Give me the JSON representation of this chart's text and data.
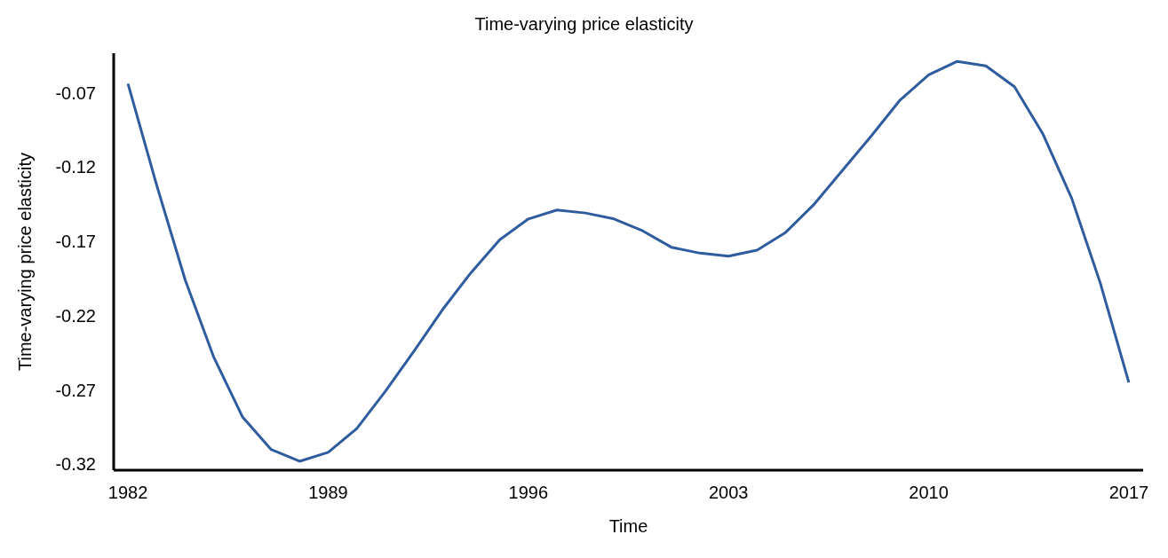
{
  "chart_data": {
    "type": "line",
    "title": "Time-varying price elasticity",
    "xlabel": "Time",
    "ylabel": "Time-varying price elasticity",
    "x": [
      1982,
      1983,
      1984,
      1985,
      1986,
      1987,
      1988,
      1989,
      1990,
      1991,
      1992,
      1993,
      1994,
      1995,
      1996,
      1997,
      1998,
      1999,
      2000,
      2001,
      2002,
      2003,
      2004,
      2005,
      2006,
      2007,
      2008,
      2009,
      2010,
      2011,
      2012,
      2013,
      2014,
      2015,
      2016,
      2017
    ],
    "series": [
      {
        "color": "#2e5c9e",
        "values": [
          -0.064,
          -0.132,
          -0.196,
          -0.248,
          -0.288,
          -0.31,
          -0.318,
          -0.312,
          -0.296,
          -0.271,
          -0.244,
          -0.216,
          -0.191,
          -0.169,
          -0.155,
          -0.149,
          -0.151,
          -0.155,
          -0.163,
          -0.174,
          -0.178,
          -0.18,
          -0.176,
          -0.164,
          -0.145,
          -0.122,
          -0.099,
          -0.075,
          -0.058,
          -0.049,
          -0.052,
          -0.066,
          -0.098,
          -0.141,
          -0.198,
          -0.265
        ]
      }
    ],
    "xlim": [
      1981.5,
      2017.5
    ],
    "xticks": [
      1982,
      1989,
      1996,
      2003,
      2010,
      2017
    ],
    "ylim": [
      -0.324,
      -0.0435
    ],
    "yticks": [
      -0.32,
      -0.27,
      -0.22,
      -0.17,
      -0.12,
      -0.07
    ],
    "grid": false,
    "legend": false,
    "marker": "none",
    "line_style": "solid"
  }
}
